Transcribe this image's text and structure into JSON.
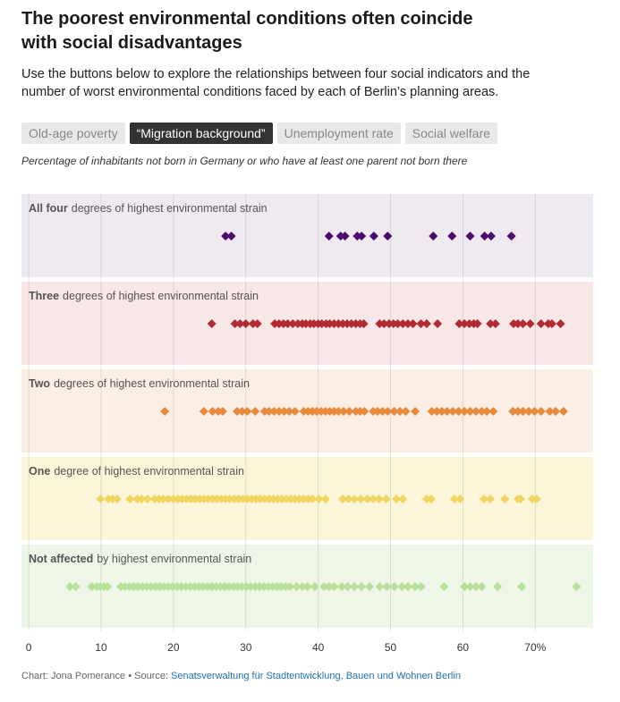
{
  "title": "The poorest environmental conditions often coincide with social disadvantages",
  "subtitle": "Use the buttons below to explore the relationships between four social indicators and the number of worst environmental conditions faced by each of Berlin’s planning areas.",
  "buttons": [
    "Old-age poverty",
    "“Migration background”",
    "Unemployment rate",
    "Social welfare"
  ],
  "active_button": 1,
  "note": "Percentage of inhabitants not born in Germany or who have at least one parent not born there",
  "chart_data": {
    "type": "strip",
    "xlim": [
      -1,
      78
    ],
    "xticks": [
      0,
      10,
      20,
      30,
      40,
      50,
      60,
      {
        "value": 70,
        "label": "70%"
      }
    ],
    "grid": true,
    "series": [
      {
        "name": "All four",
        "caption": "degrees of highest environmental strain",
        "color": "#4b0a6b",
        "band": "#efe9f1",
        "values": [
          27.2,
          28.0,
          41.5,
          43.1,
          43.7,
          45.4,
          46.0,
          47.7,
          49.6,
          55.9,
          58.5,
          61.0,
          63.0,
          63.9,
          66.7
        ]
      },
      {
        "name": "Three",
        "caption": "degrees of highest environmental strain",
        "color": "#b32a33",
        "band": "#f8e7e7",
        "values": [
          25.3,
          28.5,
          29.2,
          30.0,
          31.0,
          31.6,
          34.0,
          34.6,
          35.2,
          35.8,
          36.5,
          37.2,
          37.8,
          38.3,
          38.9,
          39.4,
          40.0,
          40.5,
          41.1,
          41.6,
          42.2,
          42.8,
          43.4,
          44.0,
          44.6,
          45.2,
          45.8,
          46.3,
          48.5,
          49.1,
          49.8,
          50.4,
          51.0,
          51.7,
          52.4,
          53.1,
          54.2,
          55.0,
          56.5,
          59.5,
          60.2,
          60.9,
          61.5,
          62.0,
          63.8,
          64.5,
          67.0,
          67.6,
          68.3,
          69.3,
          70.8,
          71.8,
          72.3,
          73.5
        ]
      },
      {
        "name": "Two",
        "caption": "degrees of highest environmental strain",
        "color": "#e8893c",
        "band": "#fbeee4",
        "values": [
          18.8,
          24.2,
          25.4,
          26.2,
          26.8,
          28.8,
          29.5,
          30.2,
          31.3,
          32.6,
          33.2,
          33.9,
          34.6,
          35.3,
          36.0,
          36.8,
          38.0,
          38.6,
          39.2,
          39.8,
          40.4,
          41.0,
          41.6,
          42.2,
          42.8,
          43.5,
          44.3,
          45.2,
          45.8,
          46.4,
          47.6,
          48.2,
          48.9,
          49.6,
          50.5,
          51.3,
          52.1,
          53.4,
          55.7,
          56.4,
          57.1,
          57.8,
          58.6,
          59.4,
          60.2,
          61.0,
          61.8,
          62.6,
          63.3,
          64.2,
          66.9,
          67.6,
          68.3,
          69.1,
          69.9,
          70.8,
          72.0,
          72.8,
          73.9
        ]
      },
      {
        "name": "One",
        "caption": "degree of highest environmental strain",
        "color": "#f0d562",
        "band": "#fbf6d9",
        "values": [
          9.9,
          11.0,
          11.6,
          12.2,
          14.0,
          15.0,
          15.6,
          16.4,
          17.4,
          18.0,
          18.6,
          19.3,
          20.0,
          20.6,
          21.2,
          21.8,
          22.4,
          23.0,
          23.6,
          24.2,
          24.8,
          25.4,
          26.0,
          26.6,
          27.2,
          27.8,
          28.4,
          29.0,
          29.6,
          30.2,
          30.8,
          31.4,
          32.0,
          32.6,
          33.2,
          33.8,
          34.4,
          35.0,
          35.6,
          36.2,
          36.8,
          37.4,
          38.0,
          38.6,
          39.2,
          40.1,
          41.0,
          43.4,
          44.2,
          45.0,
          45.9,
          46.8,
          47.6,
          48.4,
          49.4,
          50.8,
          51.7,
          55.0,
          55.6,
          58.8,
          59.6,
          62.9,
          63.8,
          65.8,
          67.6,
          68.0,
          69.6,
          70.2
        ]
      },
      {
        "name": "Not affected",
        "caption": "by highest environmental strain",
        "color": "#b9e09a",
        "band": "#eef6e7",
        "values": [
          5.7,
          6.5,
          8.7,
          9.4,
          9.9,
          10.4,
          10.9,
          12.7,
          13.3,
          13.9,
          14.5,
          15.1,
          15.7,
          16.3,
          16.9,
          17.5,
          18.1,
          18.7,
          19.3,
          19.9,
          20.5,
          21.1,
          21.7,
          22.3,
          22.9,
          23.5,
          24.1,
          24.7,
          25.3,
          25.9,
          26.5,
          27.1,
          27.7,
          28.3,
          28.9,
          29.5,
          30.1,
          30.7,
          31.3,
          31.9,
          32.5,
          33.1,
          33.7,
          34.3,
          34.9,
          35.5,
          36.1,
          37.0,
          37.8,
          38.5,
          39.5,
          40.8,
          41.5,
          42.2,
          43.3,
          44.1,
          45.0,
          46.0,
          47.1,
          48.5,
          49.5,
          50.5,
          51.6,
          52.4,
          53.4,
          54.2,
          57.4,
          60.2,
          61.0,
          61.8,
          62.6,
          64.8,
          68.1,
          75.7
        ]
      }
    ]
  },
  "credit": "Chart: Jona Pomerance • Source:",
  "source": "Senatsverwaltung für Stadtentwicklung, Bauen und Wohnen Berlin"
}
